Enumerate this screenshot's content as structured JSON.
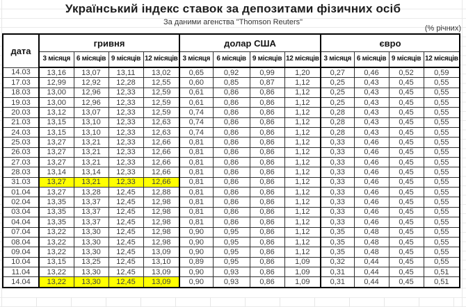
{
  "title": "Український індекс ставок за депозитами фізичних осіб",
  "subtitle": "За даними агенства \"Thomson Reuters\"",
  "units_note": "(% річних)",
  "colors": {
    "highlight": "#ffff00",
    "border": "#000000"
  },
  "table": {
    "date_header": "дата",
    "groups": [
      {
        "label": "гривня"
      },
      {
        "label": "долар США"
      },
      {
        "label": "євро"
      }
    ],
    "period_headers": [
      "3 місяця",
      "6 місяців",
      "9 місяців",
      "12 місяців"
    ],
    "rows": [
      {
        "date": "14.03",
        "uah": [
          "13,16",
          "13,07",
          "13,11",
          "13,02"
        ],
        "usd": [
          "0,65",
          "0,92",
          "0,99",
          "1,20"
        ],
        "eur": [
          "0,27",
          "0,46",
          "0,52",
          "0,59"
        ],
        "hl": false
      },
      {
        "date": "17.03",
        "uah": [
          "12,99",
          "12,92",
          "12,28",
          "12,55"
        ],
        "usd": [
          "0,60",
          "0,85",
          "0,87",
          "1,12"
        ],
        "eur": [
          "0,25",
          "0,43",
          "0,45",
          "0,55"
        ],
        "hl": false
      },
      {
        "date": "18.03",
        "uah": [
          "13,00",
          "12,96",
          "12,33",
          "12,59"
        ],
        "usd": [
          "0,61",
          "0,86",
          "0,86",
          "1,12"
        ],
        "eur": [
          "0,25",
          "0,43",
          "0,45",
          "0,55"
        ],
        "hl": false
      },
      {
        "date": "19.03",
        "uah": [
          "13,00",
          "12,96",
          "12,33",
          "12,59"
        ],
        "usd": [
          "0,61",
          "0,86",
          "0,86",
          "1,12"
        ],
        "eur": [
          "0,25",
          "0,43",
          "0,45",
          "0,55"
        ],
        "hl": false
      },
      {
        "date": "20.03",
        "uah": [
          "13,12",
          "13,07",
          "12,33",
          "12,59"
        ],
        "usd": [
          "0,74",
          "0,86",
          "0,86",
          "1,12"
        ],
        "eur": [
          "0,28",
          "0,43",
          "0,45",
          "0,55"
        ],
        "hl": false
      },
      {
        "date": "21.03",
        "uah": [
          "13,15",
          "13,10",
          "12,33",
          "12,63"
        ],
        "usd": [
          "0,74",
          "0,86",
          "0,86",
          "1,12"
        ],
        "eur": [
          "0,28",
          "0,43",
          "0,45",
          "0,55"
        ],
        "hl": false
      },
      {
        "date": "24.03",
        "uah": [
          "13,15",
          "13,10",
          "12,33",
          "12,63"
        ],
        "usd": [
          "0,74",
          "0,86",
          "0,86",
          "1,12"
        ],
        "eur": [
          "0,28",
          "0,43",
          "0,45",
          "0,55"
        ],
        "hl": false
      },
      {
        "date": "25.03",
        "uah": [
          "13,27",
          "13,21",
          "12,33",
          "12,66"
        ],
        "usd": [
          "0,81",
          "0,86",
          "0,86",
          "1,12"
        ],
        "eur": [
          "0,33",
          "0,46",
          "0,45",
          "0,55"
        ],
        "hl": false
      },
      {
        "date": "26.03",
        "uah": [
          "13,27",
          "13,21",
          "12,33",
          "12,66"
        ],
        "usd": [
          "0,81",
          "0,86",
          "0,86",
          "1,12"
        ],
        "eur": [
          "0,33",
          "0,46",
          "0,45",
          "0,55"
        ],
        "hl": false
      },
      {
        "date": "27.03",
        "uah": [
          "13,27",
          "13,21",
          "12,33",
          "12,66"
        ],
        "usd": [
          "0,81",
          "0,86",
          "0,86",
          "1,12"
        ],
        "eur": [
          "0,33",
          "0,46",
          "0,45",
          "0,55"
        ],
        "hl": false
      },
      {
        "date": "28.03",
        "uah": [
          "13,14",
          "13,14",
          "12,33",
          "12,66"
        ],
        "usd": [
          "0,81",
          "0,86",
          "0,86",
          "1,12"
        ],
        "eur": [
          "0,33",
          "0,46",
          "0,45",
          "0,55"
        ],
        "hl": false
      },
      {
        "date": "31.03",
        "uah": [
          "13,27",
          "13,21",
          "12,33",
          "12,66"
        ],
        "usd": [
          "0,81",
          "0,86",
          "0,86",
          "1,12"
        ],
        "eur": [
          "0,33",
          "0,46",
          "0,45",
          "0,55"
        ],
        "hl": true
      },
      {
        "date": "01.04",
        "uah": [
          "13,27",
          "13,28",
          "12,45",
          "12,88"
        ],
        "usd": [
          "0,81",
          "0,86",
          "0,86",
          "1,12"
        ],
        "eur": [
          "0,33",
          "0,46",
          "0,45",
          "0,55"
        ],
        "hl": false
      },
      {
        "date": "02.04",
        "uah": [
          "13,35",
          "13,37",
          "12,45",
          "12,98"
        ],
        "usd": [
          "0,81",
          "0,86",
          "0,86",
          "1,12"
        ],
        "eur": [
          "0,33",
          "0,46",
          "0,45",
          "0,55"
        ],
        "hl": false
      },
      {
        "date": "03.04",
        "uah": [
          "13,35",
          "13,37",
          "12,45",
          "12,98"
        ],
        "usd": [
          "0,81",
          "0,86",
          "0,86",
          "1,12"
        ],
        "eur": [
          "0,33",
          "0,46",
          "0,45",
          "0,55"
        ],
        "hl": false
      },
      {
        "date": "04.04",
        "uah": [
          "13,35",
          "13,37",
          "12,45",
          "12,98"
        ],
        "usd": [
          "0,81",
          "0,86",
          "0,86",
          "1,12"
        ],
        "eur": [
          "0,33",
          "0,46",
          "0,45",
          "0,55"
        ],
        "hl": false
      },
      {
        "date": "07.04",
        "uah": [
          "13,22",
          "13,30",
          "12,45",
          "12,98"
        ],
        "usd": [
          "0,90",
          "0,95",
          "0,86",
          "1,12"
        ],
        "eur": [
          "0,35",
          "0,48",
          "0,45",
          "0,55"
        ],
        "hl": false
      },
      {
        "date": "08.04",
        "uah": [
          "13,22",
          "13,30",
          "12,45",
          "12,98"
        ],
        "usd": [
          "0,90",
          "0,95",
          "0,86",
          "1,12"
        ],
        "eur": [
          "0,35",
          "0,48",
          "0,45",
          "0,55"
        ],
        "hl": false
      },
      {
        "date": "09.04",
        "uah": [
          "13,22",
          "13,30",
          "12,45",
          "13,09"
        ],
        "usd": [
          "0,90",
          "0,95",
          "0,86",
          "1,12"
        ],
        "eur": [
          "0,35",
          "0,48",
          "0,45",
          "0,55"
        ],
        "hl": false
      },
      {
        "date": "10.04",
        "uah": [
          "13,15",
          "13,25",
          "12,45",
          "13,10"
        ],
        "usd": [
          "0,89",
          "0,95",
          "0,86",
          "1,09"
        ],
        "eur": [
          "0,32",
          "0,44",
          "0,45",
          "0,55"
        ],
        "hl": false
      },
      {
        "date": "11.04",
        "uah": [
          "13,22",
          "13,30",
          "12,45",
          "13,09"
        ],
        "usd": [
          "0,90",
          "0,93",
          "0,86",
          "1,09"
        ],
        "eur": [
          "0,31",
          "0,44",
          "0,45",
          "0,51"
        ],
        "hl": false
      },
      {
        "date": "14.04",
        "uah": [
          "13,22",
          "13,30",
          "12,45",
          "13,09"
        ],
        "usd": [
          "0,90",
          "0,93",
          "0,86",
          "1,09"
        ],
        "eur": [
          "0,31",
          "0,44",
          "0,45",
          "0,51"
        ],
        "hl": true
      }
    ]
  }
}
